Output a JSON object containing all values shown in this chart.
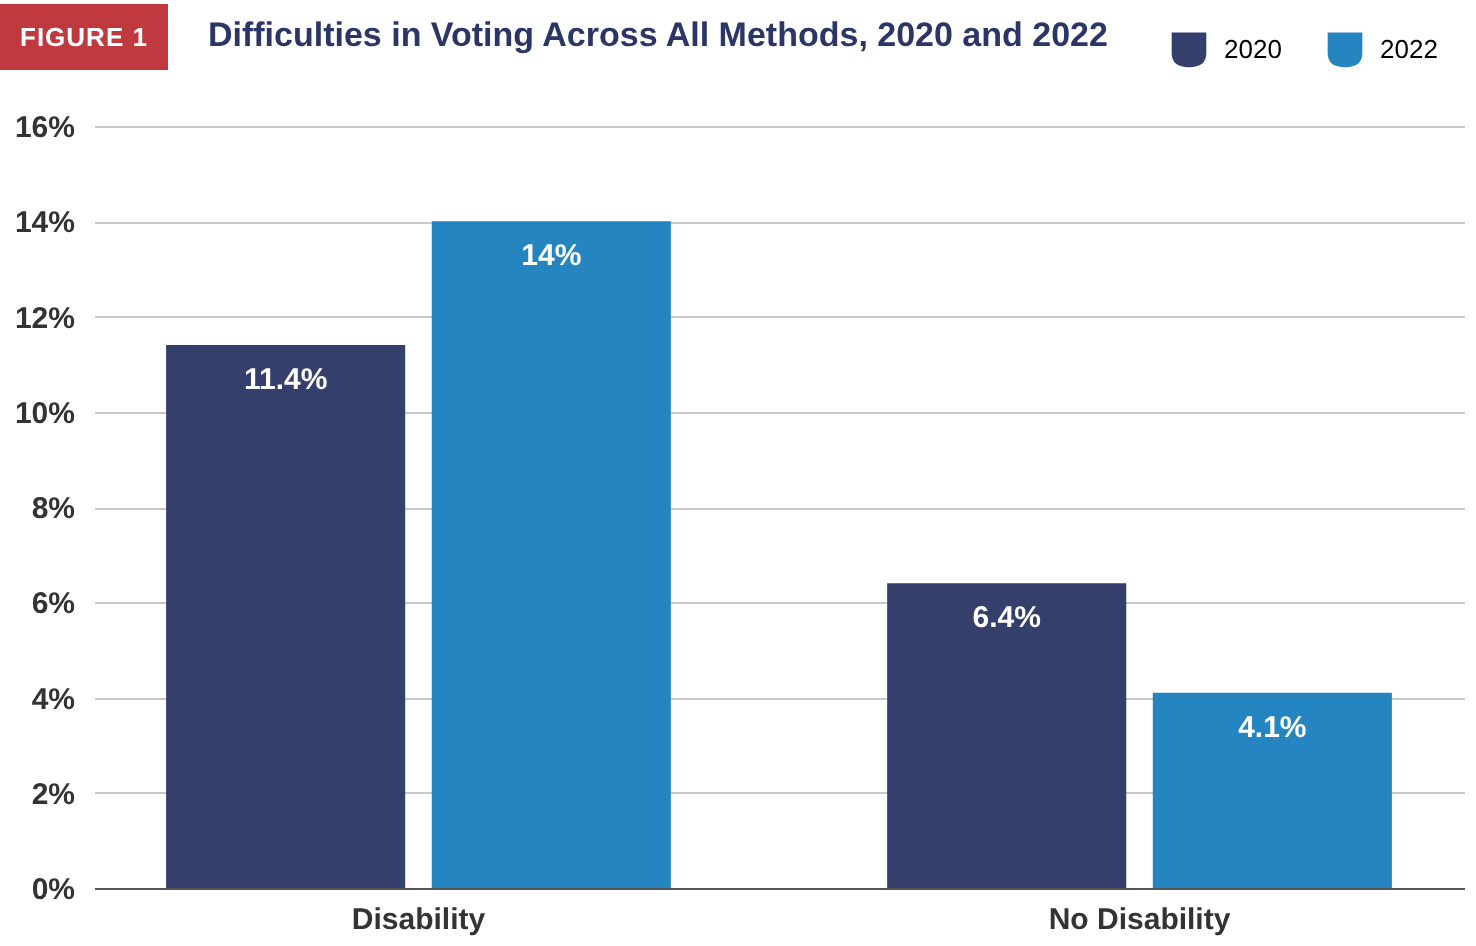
{
  "chart_data": {
    "type": "bar",
    "title": "Difficulties in Voting Across All Methods, 2020 and 2022",
    "annotations": [
      "FIGURE 1"
    ],
    "categories": [
      "Disability",
      "No Disability"
    ],
    "series": [
      {
        "name": "2020",
        "color": "#343f6b",
        "values": [
          11.4,
          6.4
        ],
        "value_labels": [
          "11.4%",
          "6.4%"
        ]
      },
      {
        "name": "2022",
        "color": "#2585c1",
        "values": [
          14,
          4.1
        ],
        "value_labels": [
          "14%",
          "4.1%"
        ]
      }
    ],
    "ylim": [
      0,
      16
    ],
    "yticks": [
      {
        "value": 0,
        "label": "0%"
      },
      {
        "value": 2,
        "label": "2%"
      },
      {
        "value": 4,
        "label": "4%"
      },
      {
        "value": 6,
        "label": "6%"
      },
      {
        "value": 8,
        "label": "8%"
      },
      {
        "value": 10,
        "label": "10%"
      },
      {
        "value": 12,
        "label": "12%"
      },
      {
        "value": 14,
        "label": "14%"
      },
      {
        "value": 16,
        "label": "16%"
      }
    ],
    "grid": "y",
    "legend": "top right"
  }
}
